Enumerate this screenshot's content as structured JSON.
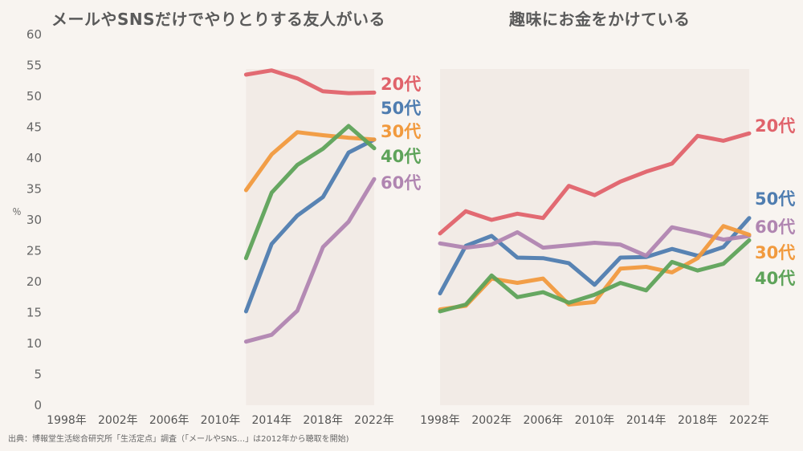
{
  "colors": {
    "20代": "#e0636b",
    "30代": "#f19a3e",
    "40代": "#5ea35a",
    "50代": "#4f7db0",
    "60代": "#b085b1",
    "area": "#ece4df",
    "text": "#555555"
  },
  "y_unit": "％",
  "footnote": "出典：博報堂生活総合研究所「生活定点」調査（「メールやSNS…」は2012年から聴取を開始)",
  "chart_data": [
    {
      "type": "line",
      "title": "メールやSNSだけでやりとりする友人がいる",
      "xlabel": "",
      "ylabel": "％",
      "ylim": [
        0,
        60
      ],
      "yticks": [
        0,
        5,
        10,
        15,
        20,
        25,
        30,
        35,
        40,
        45,
        50,
        55,
        60
      ],
      "xticks": [
        "1998年",
        "2002年",
        "2006年",
        "2010年",
        "2014年",
        "2018年",
        "2022年"
      ],
      "xtick_years": [
        1998,
        2002,
        2006,
        2010,
        2014,
        2018,
        2022
      ],
      "xrange": [
        1998,
        2022
      ],
      "x": [
        2012,
        2014,
        2016,
        2018,
        2020,
        2022
      ],
      "series": [
        {
          "name": "20代",
          "values": [
            53.5,
            54.2,
            52.9,
            50.8,
            50.5,
            50.6
          ]
        },
        {
          "name": "50代",
          "values": [
            15.2,
            26.1,
            30.7,
            33.7,
            40.9,
            43.0
          ]
        },
        {
          "name": "30代",
          "values": [
            34.8,
            40.6,
            44.2,
            43.7,
            43.3,
            43.0
          ]
        },
        {
          "name": "40代",
          "values": [
            23.8,
            34.4,
            38.9,
            41.5,
            45.2,
            41.6
          ]
        },
        {
          "name": "60代",
          "values": [
            10.3,
            11.4,
            15.3,
            25.6,
            29.7,
            36.6
          ]
        }
      ],
      "label_order": [
        "20代",
        "50代",
        "30代",
        "40代",
        "60代"
      ]
    },
    {
      "type": "line",
      "title": "趣味にお金をかけている",
      "xlabel": "",
      "ylabel": "％",
      "ylim": [
        0,
        60
      ],
      "xticks": [
        "1998年",
        "2002年",
        "2006年",
        "2010年",
        "2014年",
        "2018年",
        "2022年"
      ],
      "xtick_years": [
        1998,
        2002,
        2006,
        2010,
        2014,
        2018,
        2022
      ],
      "xrange": [
        1998,
        2022
      ],
      "x": [
        1998,
        2000,
        2002,
        2004,
        2006,
        2008,
        2010,
        2012,
        2014,
        2016,
        2018,
        2020,
        2022
      ],
      "series": [
        {
          "name": "20代",
          "values": [
            27.8,
            31.4,
            30.0,
            31.0,
            30.3,
            35.5,
            34.0,
            36.2,
            37.8,
            39.1,
            43.6,
            42.8,
            44.0
          ]
        },
        {
          "name": "50代",
          "values": [
            18.1,
            25.8,
            27.4,
            23.9,
            23.8,
            23.0,
            19.5,
            23.9,
            24.0,
            25.3,
            24.2,
            25.6,
            30.3
          ]
        },
        {
          "name": "60代",
          "values": [
            26.2,
            25.5,
            26.0,
            28.0,
            25.5,
            25.9,
            26.3,
            26.0,
            24.2,
            28.8,
            27.9,
            26.8,
            27.4
          ]
        },
        {
          "name": "30代",
          "values": [
            15.5,
            16.1,
            20.5,
            19.8,
            20.5,
            16.3,
            16.7,
            22.1,
            22.4,
            21.5,
            23.8,
            29.0,
            27.6
          ]
        },
        {
          "name": "40代",
          "values": [
            15.2,
            16.3,
            21.0,
            17.5,
            18.3,
            16.6,
            17.9,
            19.8,
            18.6,
            23.2,
            21.8,
            22.9,
            26.7
          ]
        }
      ],
      "label_order": [
        "20代",
        "50代",
        "60代",
        "30代",
        "40代"
      ]
    }
  ]
}
